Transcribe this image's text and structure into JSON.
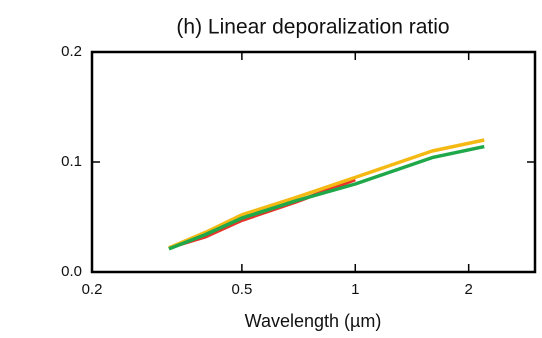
{
  "chart_data": {
    "type": "line",
    "title": "(h) Linear deporalization ratio",
    "x_label": "Wavelength (µm)",
    "x": [
      0.32,
      0.4,
      0.5,
      0.7,
      1.0,
      1.6,
      2.2
    ],
    "series": [
      {
        "color": "#e8332a",
        "values": [
          0.022,
          0.032,
          0.047,
          0.064,
          0.084,
          null,
          null
        ]
      },
      {
        "color": "#f5b914",
        "values": [
          0.022,
          0.036,
          0.052,
          0.068,
          0.086,
          0.11,
          0.12
        ]
      },
      {
        "color": "#1fa84a",
        "values": [
          0.021,
          0.034,
          0.049,
          0.065,
          0.08,
          0.104,
          0.114
        ]
      }
    ],
    "xlim": [
      0.2,
      3
    ],
    "xticks": [
      0.2,
      0.5,
      1,
      2
    ],
    "xscale": "log",
    "ylim": [
      0,
      0.2
    ],
    "yticks": [
      {
        "value": 0,
        "label": "0.0"
      },
      0.1,
      0.2
    ]
  }
}
